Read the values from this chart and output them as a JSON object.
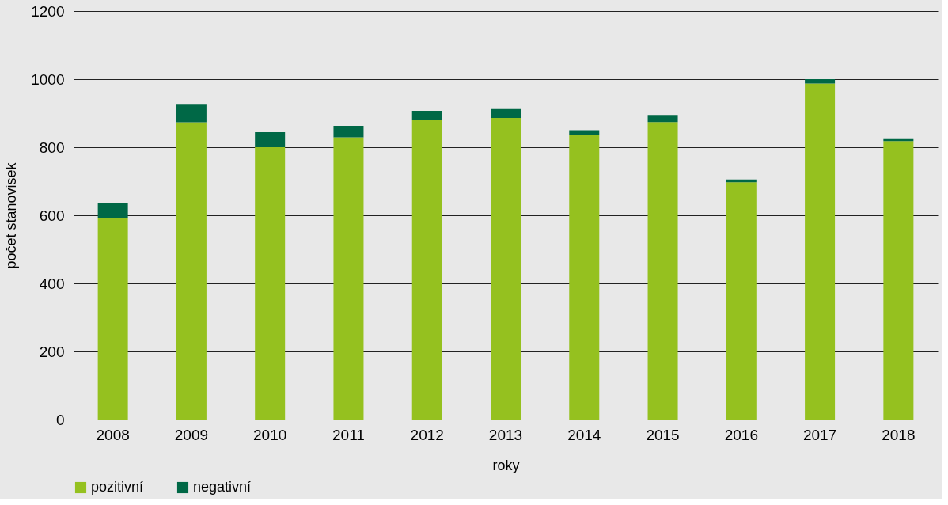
{
  "chart_data": {
    "type": "bar",
    "stacked": true,
    "xlabel": "roky",
    "ylabel": "počet stanovisek",
    "categories": [
      "2008",
      "2009",
      "2010",
      "2011",
      "2012",
      "2013",
      "2014",
      "2015",
      "2016",
      "2017",
      "2018"
    ],
    "series": [
      {
        "name": "pozitivní",
        "color": "#95c11f",
        "values": [
          592,
          873,
          800,
          829,
          881,
          886,
          837,
          874,
          697,
          987,
          818
        ]
      },
      {
        "name": "negativní",
        "color": "#006846",
        "values": [
          44,
          52,
          44,
          34,
          26,
          26,
          13,
          21,
          8,
          13,
          8
        ]
      }
    ],
    "ylim": [
      0,
      1200
    ],
    "yticks": [
      0,
      200,
      400,
      600,
      800,
      1000,
      1200
    ],
    "grid": "y",
    "legend": "bottom"
  }
}
